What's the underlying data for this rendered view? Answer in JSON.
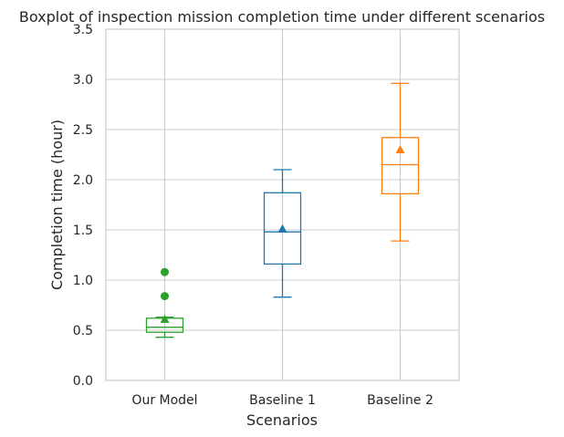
{
  "chart_data": {
    "type": "boxplot",
    "title": "Boxplot of inspection mission completion time under different scenarios",
    "xlabel": "Scenarios",
    "ylabel": "Completion time (hour)",
    "ylim": [
      0.0,
      3.5
    ],
    "yticks": [
      "0.0",
      "0.5",
      "1.0",
      "1.5",
      "2.0",
      "2.5",
      "3.0",
      "3.5"
    ],
    "grid": true,
    "categories": [
      "Our Model",
      "Baseline 1",
      "Baseline 2"
    ],
    "series": [
      {
        "category": "Our Model",
        "color": "#2ca02c",
        "whisker_low": 0.43,
        "q1": 0.48,
        "median": 0.53,
        "q3": 0.62,
        "whisker_high": 0.63,
        "mean": 0.61,
        "outliers": [
          0.84,
          1.08
        ]
      },
      {
        "category": "Baseline 1",
        "color": "#1f77b4",
        "whisker_low": 0.83,
        "q1": 1.16,
        "median": 1.48,
        "q3": 1.87,
        "whisker_high": 2.1,
        "mean": 1.51,
        "outliers": []
      },
      {
        "category": "Baseline 2",
        "color": "#ff7f0e",
        "whisker_low": 1.39,
        "q1": 1.86,
        "median": 2.15,
        "q3": 2.42,
        "whisker_high": 2.96,
        "mean": 2.3,
        "outliers": []
      }
    ]
  }
}
